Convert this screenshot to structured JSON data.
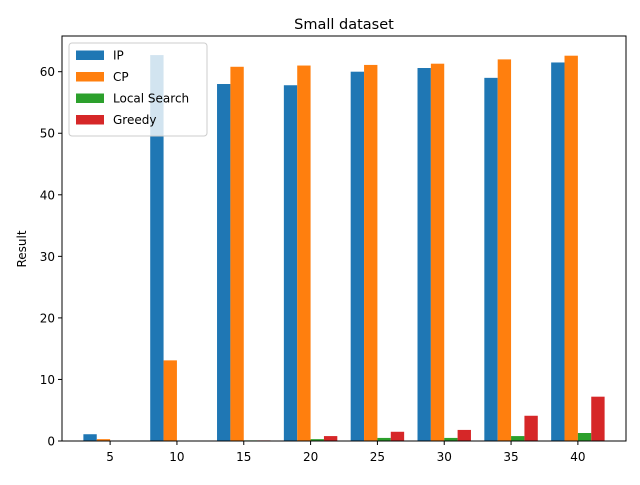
{
  "chart_data": {
    "type": "bar",
    "title": "Small dataset",
    "xlabel": "",
    "ylabel": "Result",
    "categories": [
      "5",
      "10",
      "15",
      "20",
      "25",
      "30",
      "35",
      "40"
    ],
    "ylim": [
      0,
      65.8
    ],
    "yticks": [
      0,
      10,
      20,
      30,
      40,
      50,
      60
    ],
    "grid": false,
    "legend_position": "top-left",
    "series": [
      {
        "name": "IP",
        "color": "#1f77b4",
        "values": [
          1.1,
          62.7,
          58.0,
          57.8,
          60.0,
          60.6,
          59.0,
          61.5
        ]
      },
      {
        "name": "CP",
        "color": "#ff7f0e",
        "values": [
          0.3,
          13.1,
          60.8,
          61.0,
          61.1,
          61.3,
          62.0,
          62.6
        ]
      },
      {
        "name": "Local Search",
        "color": "#2ca02c",
        "values": [
          0.0,
          0.0,
          0.1,
          0.3,
          0.5,
          0.5,
          0.8,
          1.3
        ]
      },
      {
        "name": "Greedy",
        "color": "#d62728",
        "values": [
          0.0,
          0.0,
          0.1,
          0.8,
          1.5,
          1.8,
          4.1,
          7.2
        ]
      }
    ]
  }
}
